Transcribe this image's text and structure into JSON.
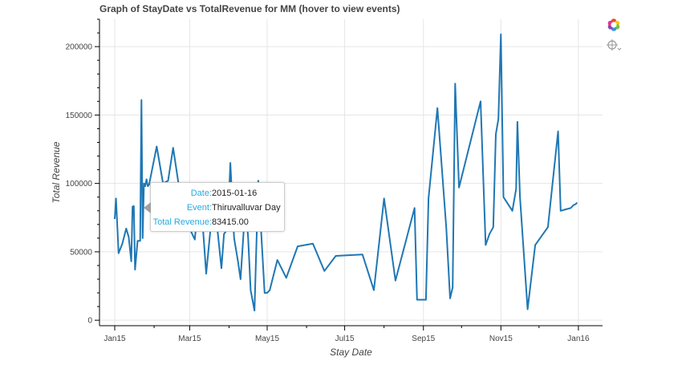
{
  "title": "Graph of StayDate vs TotalRevenue for MM (hover to view events)",
  "chart_data": {
    "type": "line",
    "title": "Graph of StayDate vs TotalRevenue for MM (hover to view events)",
    "xlabel": "Stay Date",
    "ylabel": "Total Revenue",
    "xlim": [
      "2014-12-20",
      "2016-01-20"
    ],
    "ylim": [
      -4000,
      220000
    ],
    "x_ticks": [
      "2015-01-01",
      "2015-03-01",
      "2015-05-01",
      "2015-07-01",
      "2015-09-01",
      "2015-11-01",
      "2016-01-01"
    ],
    "x_tick_labels": [
      "Jan15",
      "Mar15",
      "May15",
      "Jul15",
      "Sep15",
      "Nov15",
      "Jan16"
    ],
    "y_ticks": [
      0,
      50000,
      100000,
      150000,
      200000
    ],
    "y_tick_labels": [
      "0",
      "50000",
      "100000",
      "150000",
      "200000"
    ],
    "grid": true,
    "line_color": "#1f77b4",
    "series": [
      {
        "x": [
          "2015-01-01",
          "2015-01-02",
          "2015-01-04",
          "2015-01-07",
          "2015-01-10",
          "2015-01-12",
          "2015-01-14",
          "2015-01-15",
          "2015-01-16",
          "2015-01-17",
          "2015-01-19",
          "2015-01-21",
          "2015-01-22",
          "2015-01-23",
          "2015-01-24",
          "2015-01-25",
          "2015-01-26",
          "2015-01-27",
          "2015-01-28",
          "2015-02-03",
          "2015-02-08",
          "2015-02-12",
          "2015-02-16",
          "2015-02-20",
          "2015-02-25",
          "2015-03-01",
          "2015-03-05",
          "2015-03-09",
          "2015-03-14",
          "2015-03-20",
          "2015-03-26",
          "2015-03-28",
          "2015-03-31",
          "2015-04-02",
          "2015-04-05",
          "2015-04-08",
          "2015-04-10",
          "2015-04-12",
          "2015-04-14",
          "2015-04-16",
          "2015-04-18",
          "2015-04-21",
          "2015-04-24",
          "2015-04-29",
          "2015-05-01",
          "2015-05-03",
          "2015-05-09",
          "2015-05-16",
          "2015-05-25",
          "2015-06-06",
          "2015-06-15",
          "2015-06-24",
          "2015-07-15",
          "2015-07-24",
          "2015-08-01",
          "2015-08-10",
          "2015-08-25",
          "2015-08-27",
          "2015-09-03",
          "2015-09-05",
          "2015-09-12",
          "2015-09-19",
          "2015-09-22",
          "2015-09-24",
          "2015-09-26",
          "2015-09-29",
          "2015-10-16",
          "2015-10-20",
          "2015-10-23",
          "2015-10-26",
          "2015-10-28",
          "2015-10-30",
          "2015-11-01",
          "2015-11-03",
          "2015-11-10",
          "2015-11-13",
          "2015-11-14",
          "2015-11-16",
          "2015-11-22",
          "2015-11-28",
          "2015-12-08",
          "2015-12-16",
          "2015-12-18",
          "2015-12-22",
          "2015-12-26",
          "2015-12-27",
          "2015-12-28",
          "2015-12-30",
          "2015-12-31"
        ],
        "y": [
          74000,
          89000,
          49000,
          56000,
          67000,
          61000,
          43000,
          83000,
          83415,
          37000,
          58000,
          58000,
          161000,
          60000,
          100000,
          98000,
          103000,
          98000,
          99000,
          127000,
          100000,
          102000,
          126000,
          101000,
          72000,
          67000,
          59000,
          99000,
          34000,
          92000,
          38000,
          63000,
          67000,
          115000,
          60000,
          43000,
          30000,
          58000,
          86000,
          60000,
          22000,
          7000,
          102000,
          20000,
          20000,
          22000,
          44000,
          31000,
          54000,
          56000,
          36000,
          47000,
          48000,
          22000,
          89000,
          29000,
          82000,
          15000,
          15000,
          89000,
          155000,
          67000,
          16000,
          24000,
          173000,
          97000,
          160000,
          55000,
          63000,
          68000,
          136000,
          147000,
          209000,
          90000,
          80000,
          96000,
          145000,
          90000,
          8000,
          55000,
          68000,
          138000,
          80000,
          81000,
          82000,
          83000,
          84000,
          85000,
          86000
        ]
      }
    ],
    "hover": {
      "date_key": "Date:",
      "date_val": "2015-01-16",
      "event_key": "Event:",
      "event_val": "Thiruvalluvar Day",
      "revenue_key": "Total Revenue:",
      "revenue_val": "83415.00"
    }
  },
  "toolbar": {
    "logo_icon": "bokeh-logo-icon",
    "hover_icon": "hover-tool-icon"
  }
}
